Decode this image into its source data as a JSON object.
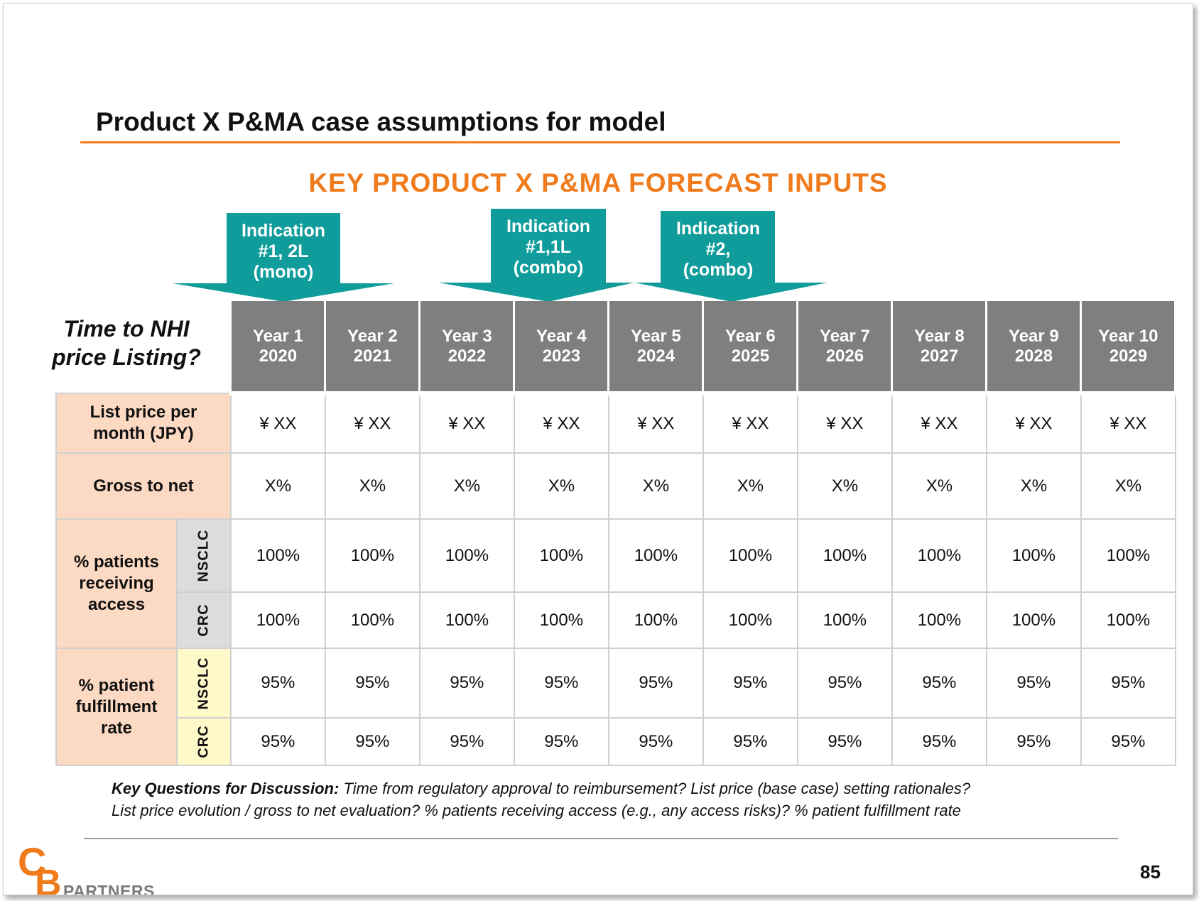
{
  "title": "Product X P&MA case assumptions  for model",
  "subtitle": "KEY PRODUCT X P&MA FORECAST INPUTS",
  "indications": [
    {
      "line1": "Indication",
      "line2": "#1, 2L",
      "line3": "(mono)"
    },
    {
      "line1": "Indication",
      "line2": "#1,1L",
      "line3": "(combo)"
    },
    {
      "line1": "Indication",
      "line2": "#2,",
      "line3": "(combo)"
    }
  ],
  "time_label": {
    "line1": "Time to NHI",
    "line2": "price Listing?"
  },
  "years": [
    {
      "label": "Year 1",
      "year": "2020"
    },
    {
      "label": "Year 2",
      "year": "2021"
    },
    {
      "label": "Year 3",
      "year": "2022"
    },
    {
      "label": "Year 4",
      "year": "2023"
    },
    {
      "label": "Year 5",
      "year": "2024"
    },
    {
      "label": "Year 6",
      "year": "2025"
    },
    {
      "label": "Year 7",
      "year": "2026"
    },
    {
      "label": "Year 8",
      "year": "2027"
    },
    {
      "label": "Year 9",
      "year": "2028"
    },
    {
      "label": "Year 10",
      "year": "2029"
    }
  ],
  "rows": {
    "list_price": {
      "label_line1": "List price per",
      "label_line2": "month (JPY)",
      "values": [
        "¥ XX",
        "¥ XX",
        "¥ XX",
        "¥ XX",
        "¥ XX",
        "¥ XX",
        "¥ XX",
        "¥ XX",
        "¥ XX",
        "¥ XX"
      ]
    },
    "gross_to_net": {
      "label": "Gross to net",
      "values": [
        "X%",
        "X%",
        "X%",
        "X%",
        "X%",
        "X%",
        "X%",
        "X%",
        "X%",
        "X%"
      ]
    },
    "access": {
      "label_line1": "% patients",
      "label_line2": "receiving",
      "label_line3": "access",
      "nsclc": {
        "sub": "NSCLC",
        "values": [
          "100%",
          "100%",
          "100%",
          "100%",
          "100%",
          "100%",
          "100%",
          "100%",
          "100%",
          "100%"
        ]
      },
      "crc": {
        "sub": "CRC",
        "values": [
          "100%",
          "100%",
          "100%",
          "100%",
          "100%",
          "100%",
          "100%",
          "100%",
          "100%",
          "100%"
        ]
      }
    },
    "fulfillment": {
      "label_line1": "% patient",
      "label_line2": "fulfillment",
      "label_line3": "rate",
      "nsclc": {
        "sub": "NSCLC",
        "values": [
          "95%",
          "95%",
          "95%",
          "95%",
          "95%",
          "95%",
          "95%",
          "95%",
          "95%",
          "95%"
        ]
      },
      "crc": {
        "sub": "CRC",
        "values": [
          "95%",
          "95%",
          "95%",
          "95%",
          "95%",
          "95%",
          "95%",
          "95%",
          "95%",
          "95%"
        ]
      }
    }
  },
  "questions": {
    "lead": "Key Questions for Discussion:",
    "line1": " Time from regulatory approval to reimbursement?  List price (base case) setting rationales?",
    "line2": "List price evolution / gross to net evaluation? % patients receiving access (e.g., any access risks)? % patient fulfillment rate"
  },
  "logo": {
    "letters": "CB",
    "partners": "PARTNERS",
    "color": "#f07b1c"
  },
  "page_number": "85",
  "colors": {
    "accent": "#f07b1c",
    "teal": "#0f9c9b",
    "header_grey": "#7f7f7f",
    "label_bg": "#fcd9c2",
    "sub_yellow": "#fff8c9"
  }
}
